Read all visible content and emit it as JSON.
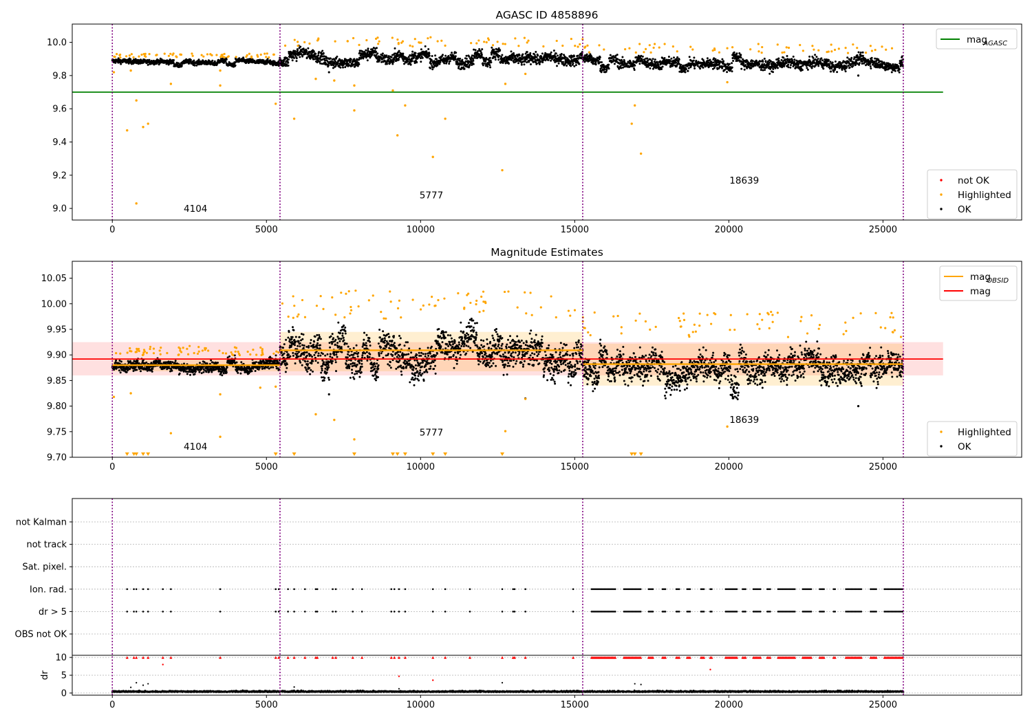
{
  "figure": {
    "panels": [
      {
        "id": "p1",
        "title": "AGASC ID 4858896"
      },
      {
        "id": "p2",
        "title": "Magnitude Estimates"
      },
      {
        "id": "p3",
        "title": ""
      }
    ]
  },
  "chart_data": [
    {
      "type": "scatter",
      "title": "AGASC ID 4858896",
      "xlabel": "",
      "ylabel": "",
      "xlim": [
        -1300,
        29500
      ],
      "ylim": [
        8.93,
        10.11
      ],
      "xticks": [
        0,
        5000,
        10000,
        15000,
        20000,
        25000
      ],
      "xtick_labels": [
        "0",
        "5000",
        "10000",
        "15000",
        "20000",
        "25000"
      ],
      "yticks": [
        9.0,
        9.2,
        9.4,
        9.6,
        9.8,
        10.0
      ],
      "ytick_labels": [
        "9.0",
        "9.2",
        "9.4",
        "9.6",
        "9.8",
        "10.0"
      ],
      "observation_boundaries": [
        0,
        5440,
        15260,
        25660
      ],
      "observation_labels": [
        {
          "text": "4104",
          "x": 2700,
          "y": 8.98
        },
        {
          "text": "5777",
          "x": 10350,
          "y": 9.06
        },
        {
          "text": "18639",
          "x": 20500,
          "y": 9.15
        }
      ],
      "reference_line": {
        "name": "mag",
        "name_sub": "AGASC",
        "y": 9.7,
        "x": [
          -1300,
          26950
        ],
        "color": "#008000"
      },
      "series": [
        {
          "name": "OK",
          "color": "#000000",
          "segments": [
            {
              "x": [
                0,
                5440
              ],
              "center": 9.88,
              "spread": 0.025
            },
            {
              "x": [
                5440,
                15260
              ],
              "center": 9.905,
              "spread": 0.06
            },
            {
              "x": [
                15260,
                25660
              ],
              "center": 9.875,
              "spread": 0.055
            }
          ],
          "outliers": [
            [
              24200,
              9.8
            ],
            [
              7030,
              9.82
            ]
          ]
        },
        {
          "name": "Highlighted",
          "color": "#FFA500",
          "points": [
            [
              50,
              9.82
            ],
            [
              480,
              9.47
            ],
            [
              600,
              9.83
            ],
            [
              780,
              9.65
            ],
            [
              780,
              9.03
            ],
            [
              1000,
              9.49
            ],
            [
              1160,
              9.51
            ],
            [
              1900,
              9.75
            ],
            [
              3500,
              9.74
            ],
            [
              3500,
              9.83
            ],
            [
              5300,
              9.63
            ],
            [
              5900,
              9.54
            ],
            [
              6600,
              9.78
            ],
            [
              7200,
              9.77
            ],
            [
              7850,
              9.74
            ],
            [
              7850,
              9.59
            ],
            [
              9100,
              9.71
            ],
            [
              9250,
              9.44
            ],
            [
              9500,
              9.62
            ],
            [
              10400,
              9.31
            ],
            [
              10800,
              9.54
            ],
            [
              12650,
              9.23
            ],
            [
              12750,
              9.75
            ],
            [
              13400,
              9.81
            ],
            [
              16850,
              9.51
            ],
            [
              16950,
              9.62
            ],
            [
              17150,
              9.33
            ],
            [
              19950,
              9.76
            ]
          ]
        },
        {
          "name": "not OK",
          "color": "#FF0000",
          "points": []
        }
      ],
      "legends": [
        {
          "placement": "upper right",
          "entries": [
            {
              "label": "mag",
              "sub": "AGASC",
              "kind": "line",
              "color": "#008000"
            }
          ]
        },
        {
          "placement": "lower right",
          "entries": [
            {
              "label": "not OK",
              "kind": "dot",
              "color": "#FF0000"
            },
            {
              "label": "Highlighted",
              "kind": "dot",
              "color": "#FFA500"
            },
            {
              "label": "OK",
              "kind": "dot",
              "color": "#000000"
            }
          ]
        }
      ]
    },
    {
      "type": "scatter",
      "title": "Magnitude Estimates",
      "xlabel": "",
      "ylabel": "",
      "xlim": [
        -1300,
        29500
      ],
      "ylim": [
        9.7,
        10.083
      ],
      "xticks": [
        0,
        5000,
        10000,
        15000,
        20000,
        25000
      ],
      "xtick_labels": [
        "0",
        "5000",
        "10000",
        "15000",
        "20000",
        "25000"
      ],
      "yticks": [
        9.7,
        9.75,
        9.8,
        9.85,
        9.9,
        9.95,
        10.0,
        10.05
      ],
      "ytick_labels": [
        "9.70",
        "9.75",
        "9.80",
        "9.85",
        "9.90",
        "9.95",
        "10.00",
        "10.05"
      ],
      "observation_boundaries": [
        0,
        5440,
        15260,
        25660
      ],
      "observation_labels": [
        {
          "text": "4104",
          "x": 2700,
          "y": 9.715
        },
        {
          "text": "5777",
          "x": 10350,
          "y": 9.742
        },
        {
          "text": "18639",
          "x": 20500,
          "y": 9.767
        }
      ],
      "mag_line": {
        "name": "mag",
        "y": 9.892,
        "band": [
          9.86,
          9.925
        ],
        "x": [
          -1300,
          26950
        ],
        "color": "#FF0000"
      },
      "obsid_mags": [
        {
          "x": [
            0,
            5440
          ],
          "y": 9.88,
          "band": [
            9.868,
            9.892
          ]
        },
        {
          "x": [
            5440,
            15260
          ],
          "y": 9.909,
          "band": [
            9.868,
            9.945
          ]
        },
        {
          "x": [
            15260,
            25660
          ],
          "y": 9.882,
          "band": [
            9.84,
            9.922
          ]
        }
      ],
      "series": [
        {
          "name": "OK",
          "color": "#000000",
          "segments": [
            {
              "x": [
                0,
                5440
              ],
              "center": 9.878,
              "spread": 0.018
            },
            {
              "x": [
                5440,
                15260
              ],
              "center": 9.905,
              "spread": 0.055
            },
            {
              "x": [
                15260,
                25660
              ],
              "center": 9.875,
              "spread": 0.05
            }
          ],
          "outliers": [
            [
              24200,
              9.8
            ],
            [
              7030,
              9.823
            ],
            [
              13400,
              9.815
            ]
          ]
        },
        {
          "name": "Highlighted",
          "color": "#FFA500",
          "points": [
            [
              50,
              9.818
            ],
            [
              600,
              9.825
            ],
            [
              1900,
              9.747
            ],
            [
              3500,
              9.74
            ],
            [
              3500,
              9.823
            ],
            [
              6600,
              9.784
            ],
            [
              7200,
              9.773
            ],
            [
              7850,
              9.735
            ],
            [
              12750,
              9.751
            ],
            [
              13400,
              9.814
            ],
            [
              19950,
              9.76
            ],
            [
              5300,
              9.838
            ],
            [
              4800,
              9.836
            ]
          ],
          "below_range_x": [
            480,
            700,
            780,
            1000,
            1160,
            5300,
            5900,
            7850,
            9100,
            9250,
            9500,
            10400,
            10800,
            12650,
            16850,
            16950,
            17150
          ]
        }
      ],
      "legends": [
        {
          "placement": "upper right",
          "entries": [
            {
              "label": "mag",
              "sub": "OBSID",
              "kind": "line",
              "color": "#FFA500"
            },
            {
              "label": "mag",
              "kind": "line",
              "color": "#FF0000"
            }
          ]
        },
        {
          "placement": "lower right",
          "entries": [
            {
              "label": "Highlighted",
              "kind": "dot",
              "color": "#FFA500"
            },
            {
              "label": "OK",
              "kind": "dot",
              "color": "#000000"
            }
          ]
        }
      ]
    },
    {
      "type": "scatter",
      "title": "",
      "xlabel": "",
      "ylabel": "dr",
      "xlim": [
        -1300,
        29500
      ],
      "xticks": [
        0,
        5000,
        10000,
        15000,
        20000,
        25000
      ],
      "xtick_labels": [
        "0",
        "5000",
        "10000",
        "15000",
        "20000",
        "25000"
      ],
      "flag_rows": [
        "not Kalman",
        "not track",
        "Sat. pixel.",
        "Ion. rad.",
        "dr > 5",
        "OBS not OK"
      ],
      "dr_yticks": [
        0,
        5,
        10
      ],
      "dr_ytick_labels": [
        "0",
        "5",
        "10"
      ],
      "dr_ylim": [
        -0.6,
        10.6
      ],
      "observation_boundaries": [
        0,
        5440,
        15260,
        25660
      ],
      "flag_points_x": [
        480,
        700,
        780,
        1000,
        1160,
        1640,
        1900,
        3500,
        5300,
        5400,
        5700,
        5900,
        6250,
        6600,
        6650,
        7150,
        7250,
        7800,
        8100,
        9050,
        9150,
        9300,
        9500,
        10400,
        10800,
        11600,
        12650,
        13000,
        13050,
        13400,
        14950
      ],
      "flag_dense_ranges": [
        [
          15550,
          16350
        ],
        [
          16600,
          17150
        ],
        [
          17400,
          17550
        ],
        [
          17850,
          17950
        ],
        [
          18300,
          18400
        ],
        [
          18650,
          18750
        ],
        [
          19100,
          19200
        ],
        [
          19400,
          19450
        ],
        [
          19900,
          20300
        ],
        [
          20450,
          20550
        ],
        [
          20800,
          21050
        ],
        [
          21250,
          21350
        ],
        [
          21600,
          22150
        ],
        [
          22400,
          22700
        ],
        [
          22950,
          23100
        ],
        [
          23400,
          23450
        ],
        [
          23800,
          24300
        ],
        [
          24600,
          24800
        ],
        [
          25050,
          25650
        ]
      ],
      "flag_rows_marked": [
        "Ion. rad.",
        "dr > 5"
      ],
      "dr_series": [
        {
          "name": "dr",
          "color": "#000000",
          "baseline": 0.3,
          "spread": 0.3,
          "x": [
            0,
            25660
          ],
          "extra_points": [
            [
              600,
              1.6
            ],
            [
              780,
              2.9
            ],
            [
              1000,
              2.2
            ],
            [
              1160,
              2.6
            ],
            [
              5900,
              1.7
            ],
            [
              9300,
              1.2
            ],
            [
              12650,
              2.9
            ],
            [
              16950,
              2.6
            ],
            [
              17150,
              2.4
            ]
          ]
        },
        {
          "name": "dr > 5 (red)",
          "color": "#FF0000",
          "value": 10,
          "extra_points": [
            [
              1640,
              8.0
            ],
            [
              9300,
              4.7
            ],
            [
              10400,
              3.6
            ],
            [
              19400,
              6.6
            ]
          ]
        }
      ]
    }
  ]
}
